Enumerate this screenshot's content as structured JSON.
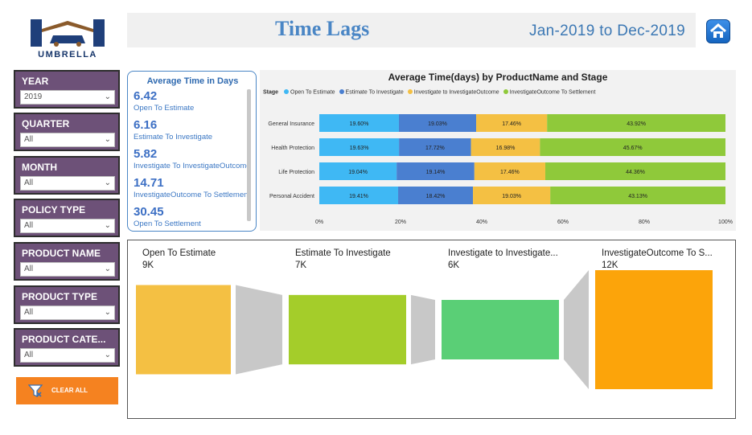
{
  "header": {
    "logo_text": "UMBRELLA",
    "title": "Time Lags",
    "date_range": "Jan-2019 to Dec-2019",
    "home_icon": "home-icon"
  },
  "filters": [
    {
      "label": "YEAR",
      "value": "2019"
    },
    {
      "label": "QUARTER",
      "value": "All"
    },
    {
      "label": "MONTH",
      "value": "All"
    },
    {
      "label": "POLICY TYPE",
      "value": "All"
    },
    {
      "label": "PRODUCT NAME",
      "value": "All"
    },
    {
      "label": "PRODUCT TYPE",
      "value": "All"
    },
    {
      "label": "PRODUCT CATE...",
      "value": "All"
    }
  ],
  "clear_all": {
    "label": "CLEAR ALL",
    "icon": "filter-clear-icon"
  },
  "kpi": {
    "title": "Average Time in Days",
    "items": [
      {
        "value": "6.42",
        "label": "Open To Estimate"
      },
      {
        "value": "6.16",
        "label": "Estimate To Investigate"
      },
      {
        "value": "5.82",
        "label": "Investigate To InvestigateOutcome"
      },
      {
        "value": "14.71",
        "label": "InvestigateOutcome To Settlement"
      },
      {
        "value": "30.45",
        "label": "Open To Settlement"
      }
    ]
  },
  "chart_data": [
    {
      "type": "bar",
      "orientation": "horizontal",
      "stacked": "100%",
      "title": "Average Time(days) by ProductName and Stage",
      "legend_title": "Stage",
      "legend_position": "top-left",
      "categories": [
        "General Insurance",
        "Health Protection",
        "Life Protection",
        "Personal Accident"
      ],
      "series": [
        {
          "name": "Open To Estimate",
          "color": "#3fb8f4",
          "values": [
            19.6,
            19.63,
            19.04,
            19.41
          ]
        },
        {
          "name": "Estimate To Investigate",
          "color": "#4a7fd0",
          "values": [
            19.03,
            17.72,
            19.14,
            18.42
          ]
        },
        {
          "name": "Investigate to InvestigateOutcome",
          "color": "#f4c043",
          "values": [
            17.46,
            16.98,
            17.46,
            19.03
          ]
        },
        {
          "name": "InvestigateOutcome To Settlement",
          "color": "#8fc93a",
          "values": [
            43.92,
            45.67,
            44.36,
            43.13
          ]
        }
      ],
      "value_suffix": "%",
      "xlim": [
        0,
        100
      ],
      "xticks": [
        "0%",
        "20%",
        "40%",
        "60%",
        "80%",
        "100%"
      ]
    },
    {
      "type": "funnel",
      "stages": [
        {
          "label": "Open To Estimate",
          "value_label": "9K",
          "value": 9000,
          "color": "#f4c043"
        },
        {
          "label": "Estimate To Investigate",
          "value_label": "7K",
          "value": 7000,
          "color": "#a4cd2a"
        },
        {
          "label": "Investigate to Investigate...",
          "value_label": "6K",
          "value": 6000,
          "color": "#5acf76"
        },
        {
          "label": "InvestigateOutcome To S...",
          "value_label": "12K",
          "value": 12000,
          "color": "#fca40a"
        }
      ],
      "connector_color": "#c8c8c8"
    }
  ]
}
